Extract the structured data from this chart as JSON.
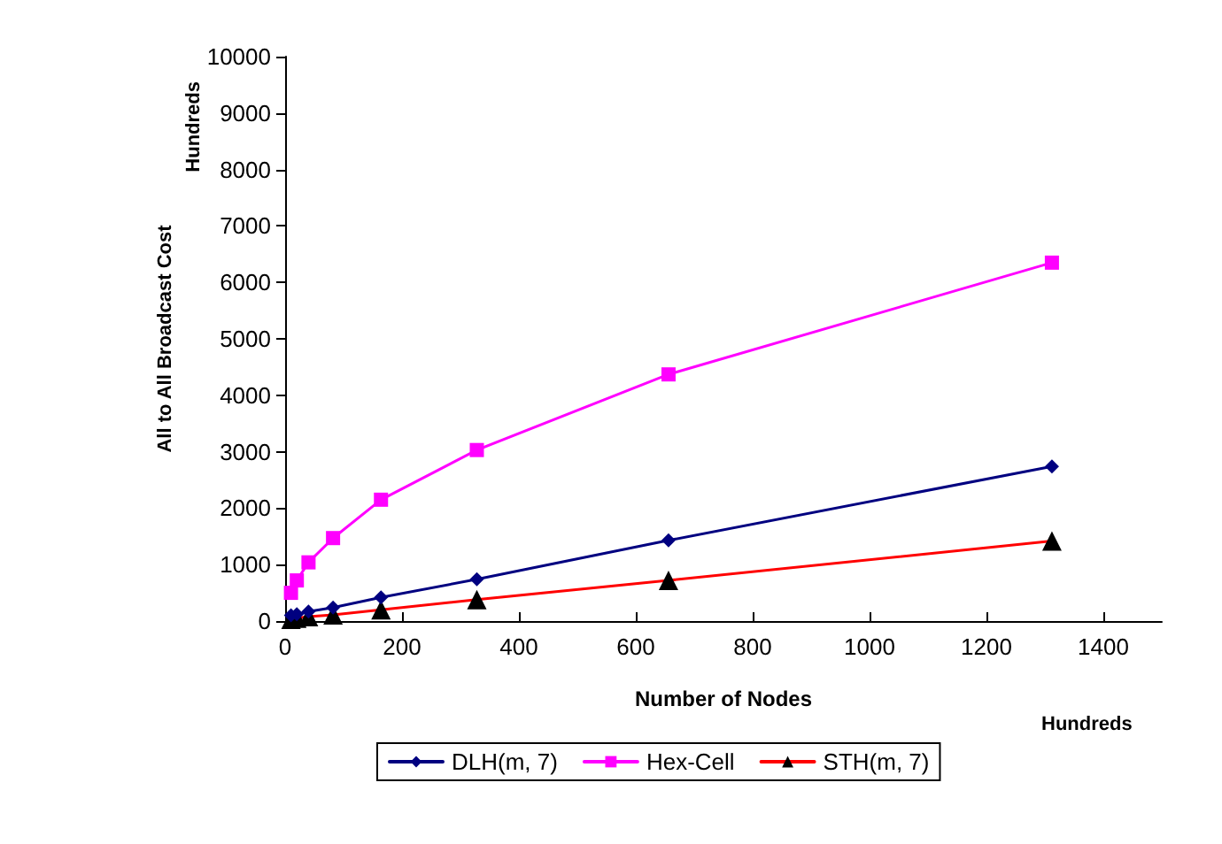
{
  "chart_data": {
    "type": "line",
    "xlabel": "Number of Nodes",
    "ylabel": "All to All Broadcast Cost",
    "annotations": [
      "Hundreds",
      "Hundreds"
    ],
    "x": [
      10,
      20,
      40,
      82,
      164,
      328,
      656,
      1312
    ],
    "series": [
      {
        "name": "DLH(m, 7)",
        "color": "#000080",
        "marker": "diamond",
        "values": [
          100,
          120,
          170,
          240,
          420,
          740,
          1430,
          2740
        ]
      },
      {
        "name": "Hex-Cell",
        "color": "#ff00ff",
        "marker": "square",
        "values": [
          500,
          720,
          1040,
          1470,
          2150,
          3030,
          4370,
          6350
        ]
      },
      {
        "name": "STH(m, 7)",
        "color": "#ff0000",
        "marker": "triangle",
        "values": [
          30,
          50,
          80,
          110,
          200,
          380,
          720,
          1420
        ]
      }
    ],
    "xlim": [
      0,
      1500
    ],
    "xticks": [
      0,
      200,
      400,
      600,
      800,
      1000,
      1200,
      1400
    ],
    "ylim": [
      0,
      10000
    ],
    "yticks": [
      0,
      1000,
      2000,
      3000,
      4000,
      5000,
      6000,
      7000,
      8000,
      9000,
      10000
    ],
    "grid": false,
    "legend": "bottom",
    "line_style": "solid"
  }
}
